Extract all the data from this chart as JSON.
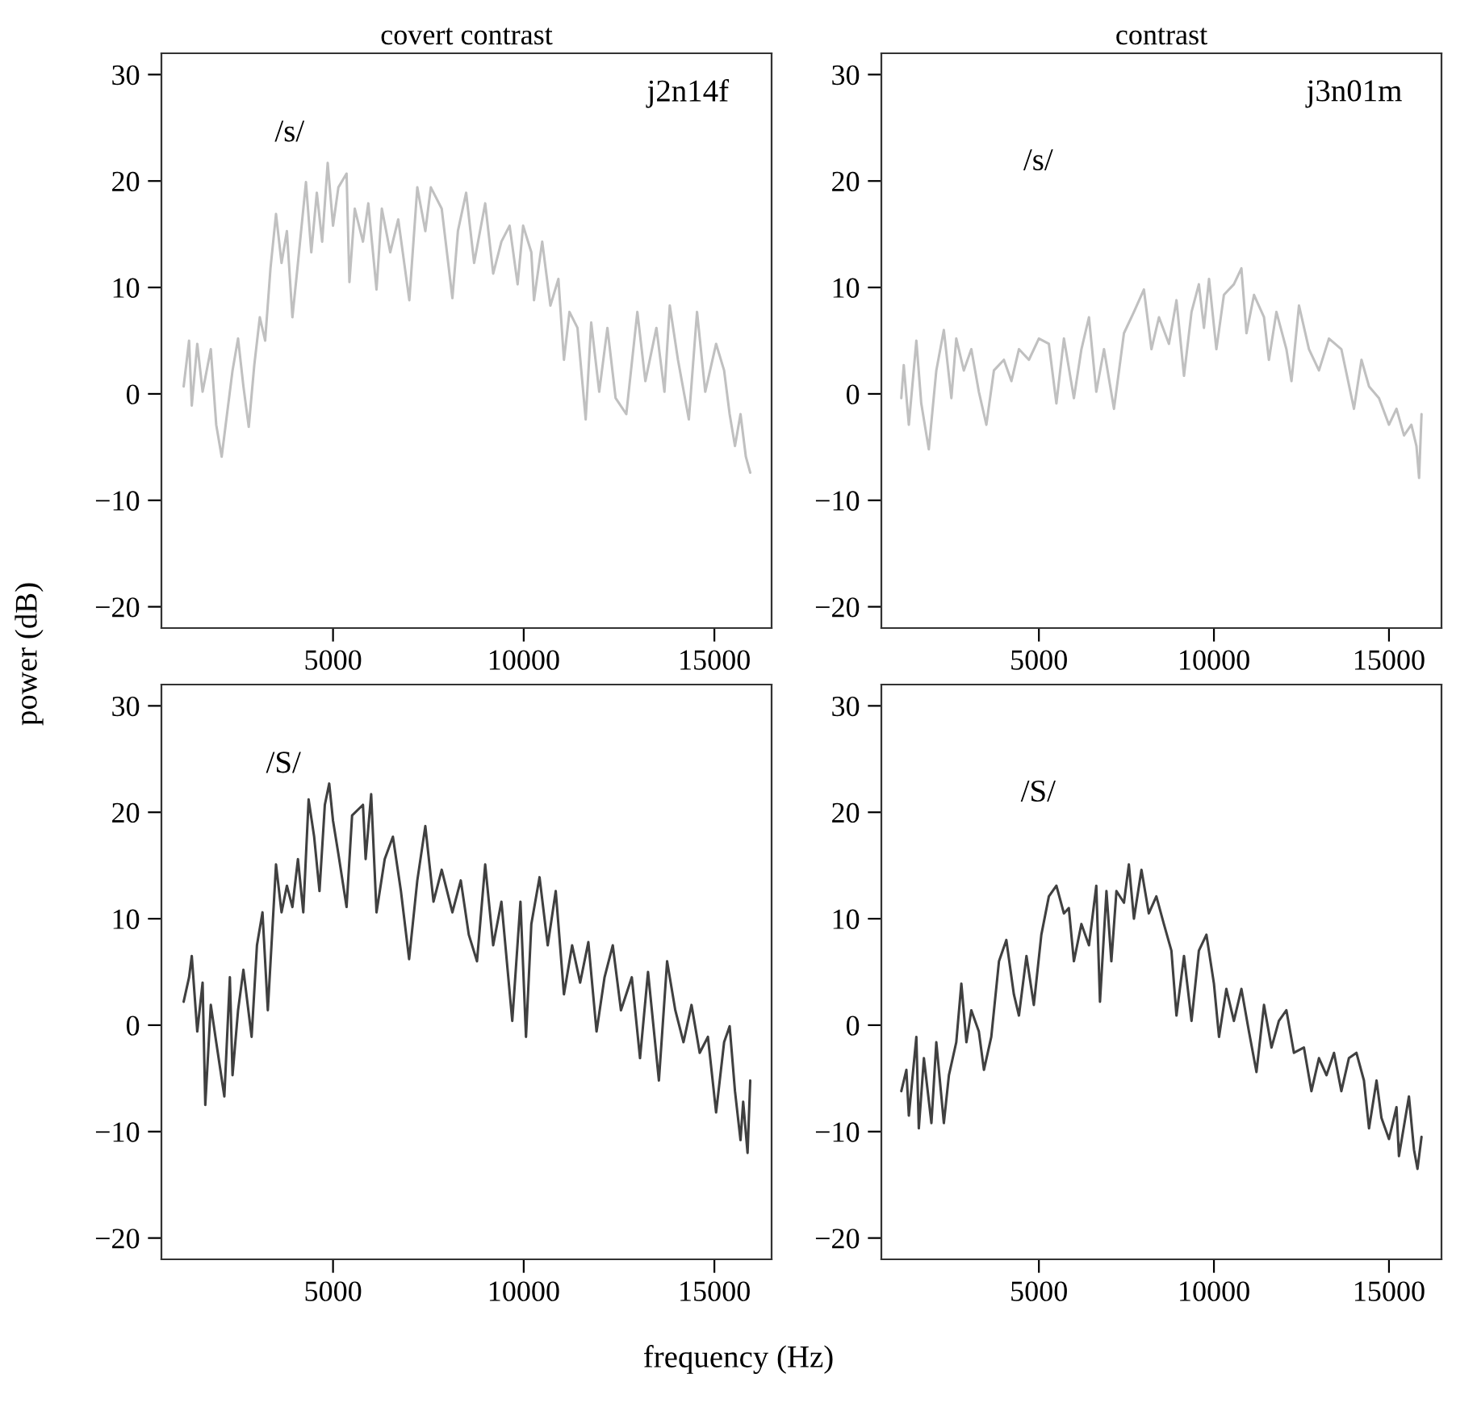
{
  "chart_data": [
    {
      "type": "line",
      "title": "covert contrast",
      "ylabel": "power (dB)",
      "annotations": [
        "j2n14f",
        "/s/"
      ],
      "xlim": [
        500,
        16500
      ],
      "ylim": [
        -22,
        32
      ],
      "xticks": [
        5000,
        10000,
        15000
      ],
      "yticks": [
        -20,
        -10,
        0,
        10,
        20,
        30
      ],
      "series": [
        {
          "color": "#c0c0c0",
          "x": [
            1083,
            1225,
            1296,
            1440,
            1580,
            1795,
            1937,
            2080,
            2220,
            2365,
            2510,
            2650,
            2790,
            2935,
            3080,
            3220,
            3360,
            3505,
            3650,
            3790,
            3935,
            4080,
            4290,
            4430,
            4575,
            4715,
            4860,
            5000,
            5140,
            5355,
            5430,
            5570,
            5785,
            5925,
            6140,
            6280,
            6500,
            6710,
            7000,
            7210,
            7420,
            7565,
            7850,
            8130,
            8275,
            8490,
            8700,
            8990,
            9200,
            9415,
            9630,
            9840,
            9985,
            10200,
            10270,
            10485,
            10700,
            10910,
            11055,
            11200,
            11410,
            11625,
            11770,
            11980,
            12195,
            12410,
            12690,
            12980,
            13190,
            13480,
            13690,
            13830,
            14045,
            14330,
            14545,
            14760,
            15045,
            15255,
            15400,
            15540,
            15685,
            15825,
            15940
          ],
          "values": [
            0.7,
            5.0,
            -1.1,
            4.7,
            0.2,
            4.2,
            -2.9,
            -5.9,
            -1.9,
            2.2,
            5.2,
            0.7,
            -3.1,
            2.7,
            7.2,
            5.0,
            11.8,
            16.9,
            12.3,
            15.3,
            7.2,
            12.3,
            19.9,
            13.3,
            18.9,
            14.3,
            21.7,
            15.8,
            19.4,
            20.7,
            10.5,
            17.4,
            14.3,
            17.9,
            9.8,
            17.4,
            13.3,
            16.4,
            8.8,
            19.4,
            15.3,
            19.4,
            17.4,
            9.0,
            15.3,
            18.9,
            12.3,
            17.9,
            11.3,
            14.3,
            15.8,
            10.3,
            15.8,
            13.3,
            8.8,
            14.3,
            8.3,
            10.8,
            3.2,
            7.7,
            6.2,
            -2.4,
            6.7,
            0.2,
            6.2,
            -0.4,
            -1.9,
            7.7,
            1.2,
            6.2,
            0.2,
            8.3,
            3.2,
            -2.4,
            7.7,
            0.2,
            4.7,
            2.2,
            -1.9,
            -4.9,
            -1.9,
            -5.9,
            -7.4
          ]
        }
      ]
    },
    {
      "type": "line",
      "title": "contrast",
      "annotations": [
        "j3n01m",
        "/s/"
      ],
      "xlim": [
        500,
        16500
      ],
      "ylim": [
        -22,
        32
      ],
      "xticks": [
        5000,
        10000,
        15000
      ],
      "yticks": [
        -20,
        -10,
        0,
        10,
        20,
        30
      ],
      "series": [
        {
          "color": "#c0c0c0",
          "x": [
            1070,
            1140,
            1285,
            1500,
            1640,
            1855,
            2070,
            2285,
            2500,
            2640,
            2855,
            3070,
            3285,
            3500,
            3715,
            4000,
            4215,
            4430,
            4715,
            5000,
            5285,
            5500,
            5715,
            6000,
            6215,
            6430,
            6640,
            6860,
            7145,
            7430,
            7715,
            8000,
            8215,
            8430,
            8715,
            8930,
            9145,
            9360,
            9570,
            9715,
            9860,
            10070,
            10285,
            10570,
            10785,
            10930,
            11145,
            11430,
            11570,
            11785,
            12070,
            12215,
            12430,
            12715,
            13000,
            13285,
            13640,
            14000,
            14215,
            14430,
            14715,
            15000,
            15215,
            15430,
            15640,
            15785,
            15860,
            15930
          ],
          "values": [
            -0.4,
            2.7,
            -2.9,
            5.0,
            -0.9,
            -5.2,
            2.2,
            6.0,
            -0.4,
            5.2,
            2.2,
            4.2,
            0.2,
            -2.9,
            2.2,
            3.2,
            1.2,
            4.2,
            3.2,
            5.2,
            4.7,
            -0.9,
            5.2,
            -0.4,
            4.2,
            7.2,
            0.2,
            4.2,
            -1.4,
            5.7,
            7.7,
            9.8,
            4.2,
            7.2,
            4.7,
            8.8,
            1.7,
            7.7,
            10.3,
            6.2,
            10.8,
            4.2,
            9.3,
            10.3,
            11.8,
            5.7,
            9.3,
            7.2,
            3.2,
            7.7,
            4.2,
            1.2,
            8.3,
            4.2,
            2.2,
            5.2,
            4.2,
            -1.4,
            3.2,
            0.7,
            -0.4,
            -2.9,
            -1.4,
            -3.9,
            -2.9,
            -4.9,
            -7.9,
            -1.9
          ]
        }
      ]
    },
    {
      "type": "line",
      "xlabel": "frequency (Hz)",
      "annotations": [
        "/S/"
      ],
      "xlim": [
        500,
        16500
      ],
      "ylim": [
        -22,
        32
      ],
      "xticks": [
        5000,
        10000,
        15000
      ],
      "yticks": [
        -20,
        -10,
        0,
        10,
        20,
        30
      ],
      "series": [
        {
          "color": "#404040",
          "x": [
            1083,
            1225,
            1296,
            1440,
            1580,
            1650,
            1795,
            1937,
            2150,
            2295,
            2365,
            2510,
            2650,
            2865,
            3005,
            3150,
            3290,
            3505,
            3650,
            3790,
            3935,
            4080,
            4220,
            4360,
            4505,
            4645,
            4785,
            4900,
            5000,
            5140,
            5355,
            5500,
            5785,
            5855,
            6000,
            6140,
            6355,
            6570,
            6780,
            6995,
            7210,
            7420,
            7635,
            7850,
            8130,
            8350,
            8560,
            8775,
            8990,
            9200,
            9415,
            9700,
            9915,
            10060,
            10200,
            10415,
            10630,
            10840,
            11055,
            11270,
            11480,
            11695,
            11910,
            12120,
            12335,
            12550,
            12835,
            13050,
            13260,
            13545,
            13760,
            13975,
            14190,
            14400,
            14615,
            14830,
            15045,
            15255,
            15400,
            15540,
            15685,
            15755,
            15870,
            15940
          ],
          "values": [
            2.2,
            4.5,
            6.5,
            -0.6,
            4.0,
            -7.5,
            1.9,
            -1.6,
            -6.7,
            4.5,
            -4.7,
            1.4,
            5.2,
            -1.1,
            7.5,
            10.6,
            1.4,
            15.1,
            10.6,
            13.1,
            11.1,
            15.6,
            10.6,
            21.2,
            17.7,
            12.6,
            20.7,
            22.7,
            19.2,
            16.1,
            11.1,
            19.7,
            20.7,
            15.6,
            21.7,
            10.6,
            15.6,
            17.7,
            12.6,
            6.2,
            13.6,
            18.7,
            11.6,
            14.6,
            10.6,
            13.6,
            8.5,
            6.0,
            15.1,
            7.5,
            11.6,
            0.4,
            11.6,
            -1.1,
            9.5,
            13.9,
            7.5,
            12.6,
            2.9,
            7.5,
            4.0,
            7.8,
            -0.6,
            4.5,
            7.5,
            1.4,
            4.5,
            -3.1,
            5.0,
            -5.2,
            6.0,
            1.4,
            -1.6,
            1.9,
            -2.6,
            -1.1,
            -8.2,
            -1.6,
            -0.1,
            -6.2,
            -10.8,
            -7.2,
            -12.0,
            -5.2
          ]
        }
      ]
    },
    {
      "type": "line",
      "annotations": [
        "/S/"
      ],
      "xlim": [
        500,
        16500
      ],
      "ylim": [
        -22,
        32
      ],
      "xticks": [
        5000,
        10000,
        15000
      ],
      "yticks": [
        -20,
        -10,
        0,
        10,
        20,
        30
      ],
      "series": [
        {
          "color": "#404040",
          "x": [
            1070,
            1215,
            1285,
            1500,
            1570,
            1715,
            1930,
            2070,
            2285,
            2430,
            2640,
            2785,
            2930,
            3070,
            3285,
            3430,
            3640,
            3860,
            4070,
            4285,
            4430,
            4645,
            4855,
            5070,
            5285,
            5500,
            5715,
            5855,
            6000,
            6215,
            6430,
            6640,
            6745,
            6930,
            7070,
            7215,
            7430,
            7570,
            7715,
            7930,
            8140,
            8355,
            8570,
            8785,
            8930,
            9145,
            9360,
            9570,
            9785,
            10000,
            10145,
            10355,
            10570,
            10785,
            11000,
            11215,
            11430,
            11645,
            11855,
            12070,
            12285,
            12570,
            12785,
            13000,
            13215,
            13430,
            13640,
            13855,
            14070,
            14285,
            14430,
            14645,
            14785,
            15000,
            15215,
            15285,
            15570,
            15715,
            15815,
            15930
          ],
          "values": [
            -6.2,
            -4.2,
            -8.5,
            -1.1,
            -9.7,
            -3.1,
            -9.2,
            -1.6,
            -9.2,
            -4.7,
            -1.6,
            3.9,
            -1.6,
            1.4,
            -0.6,
            -4.2,
            -1.1,
            6.0,
            8.0,
            2.9,
            0.9,
            6.5,
            1.9,
            8.5,
            12.1,
            13.1,
            10.5,
            11.0,
            6.0,
            9.5,
            7.5,
            13.1,
            2.2,
            12.6,
            6.0,
            12.6,
            11.5,
            15.1,
            10.0,
            14.6,
            10.5,
            12.1,
            9.5,
            7.0,
            0.9,
            6.5,
            0.4,
            7.0,
            8.5,
            3.9,
            -1.1,
            3.4,
            0.4,
            3.4,
            -0.6,
            -4.4,
            1.9,
            -2.1,
            0.4,
            1.4,
            -2.6,
            -2.1,
            -6.2,
            -3.1,
            -4.7,
            -2.6,
            -6.2,
            -3.1,
            -2.6,
            -5.2,
            -9.7,
            -5.2,
            -8.7,
            -10.7,
            -7.7,
            -12.3,
            -6.7,
            -11.7,
            -13.5,
            -10.5
          ]
        }
      ]
    }
  ]
}
